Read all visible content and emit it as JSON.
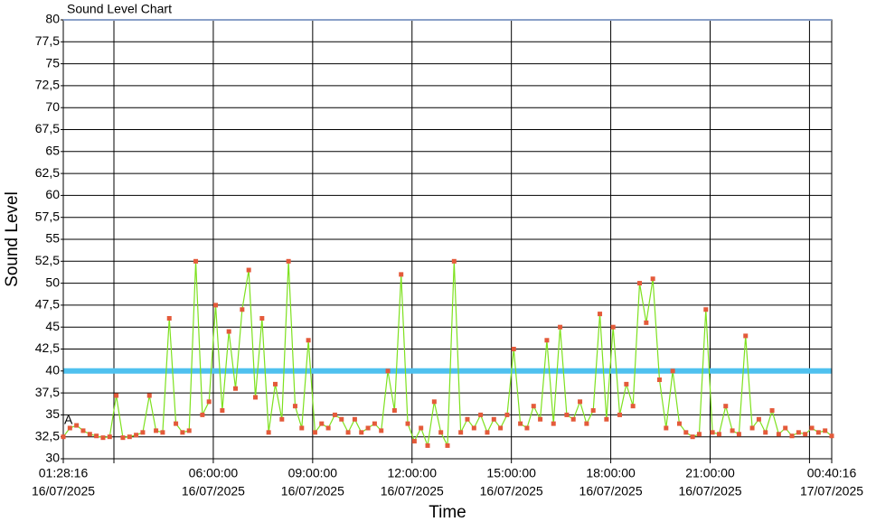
{
  "chart_data": {
    "type": "line",
    "title": "Sound Level Chart",
    "x_label": "Time",
    "y_label": "Sound Level",
    "annotation": "A",
    "threshold": 40,
    "threshold_color": "#4fc1ef",
    "grid": true,
    "ylim": [
      30,
      80
    ],
    "yticks": [
      30,
      {
        "value": 32.5,
        "label": "32,5"
      },
      35,
      {
        "value": 37.5,
        "label": "37,5"
      },
      40,
      {
        "value": 42.5,
        "label": "42,5"
      },
      45,
      {
        "value": 47.5,
        "label": "47,5"
      },
      50,
      {
        "value": 52.5,
        "label": "52,5"
      },
      55,
      {
        "value": 57.5,
        "label": "57,5"
      },
      60,
      {
        "value": 62.5,
        "label": "62,5"
      },
      65,
      {
        "value": 67.5,
        "label": "67,5"
      },
      70,
      {
        "value": 72.5,
        "label": "72,5"
      },
      75,
      {
        "value": 77.5,
        "label": "77,5"
      },
      80
    ],
    "xlim": [
      "2025-07-16 01:28:16",
      "2025-07-17 00:40:16"
    ],
    "xticks": [
      {
        "value": "2025-07-16 01:28:16",
        "label": [
          "01:28:16",
          "16/07/2025"
        ]
      },
      {
        "value": "2025-07-16 03:00:00",
        "label": null
      },
      {
        "value": "2025-07-16 06:00:00",
        "label": [
          "06:00:00",
          "16/07/2025"
        ]
      },
      {
        "value": "2025-07-16 09:00:00",
        "label": [
          "09:00:00",
          "16/07/2025"
        ]
      },
      {
        "value": "2025-07-16 12:00:00",
        "label": [
          "12:00:00",
          "16/07/2025"
        ]
      },
      {
        "value": "2025-07-16 15:00:00",
        "label": [
          "15:00:00",
          "16/07/2025"
        ]
      },
      {
        "value": "2025-07-16 18:00:00",
        "label": [
          "18:00:00",
          "16/07/2025"
        ]
      },
      {
        "value": "2025-07-16 21:00:00",
        "label": [
          "21:00:00",
          "16/07/2025"
        ]
      },
      {
        "value": "2025-07-17 00:00:00",
        "label": null
      },
      {
        "value": "2025-07-17 00:40:16",
        "label": [
          "00:40:16",
          "17/07/2025"
        ]
      }
    ],
    "x": [
      "2025-07-16 01:28:16",
      "2025-07-16 01:40:16",
      "2025-07-16 01:52:16",
      "2025-07-16 02:04:16",
      "2025-07-16 02:16:16",
      "2025-07-16 02:28:16",
      "2025-07-16 02:40:16",
      "2025-07-16 02:52:16",
      "2025-07-16 03:04:16",
      "2025-07-16 03:16:16",
      "2025-07-16 03:28:16",
      "2025-07-16 03:40:16",
      "2025-07-16 03:52:16",
      "2025-07-16 04:04:16",
      "2025-07-16 04:16:16",
      "2025-07-16 04:28:16",
      "2025-07-16 04:40:16",
      "2025-07-16 04:52:16",
      "2025-07-16 05:04:16",
      "2025-07-16 05:16:16",
      "2025-07-16 05:28:16",
      "2025-07-16 05:40:16",
      "2025-07-16 05:52:16",
      "2025-07-16 06:04:16",
      "2025-07-16 06:16:16",
      "2025-07-16 06:28:16",
      "2025-07-16 06:40:16",
      "2025-07-16 06:52:16",
      "2025-07-16 07:04:16",
      "2025-07-16 07:16:16",
      "2025-07-16 07:28:16",
      "2025-07-16 07:40:16",
      "2025-07-16 07:52:16",
      "2025-07-16 08:04:16",
      "2025-07-16 08:16:16",
      "2025-07-16 08:28:16",
      "2025-07-16 08:40:16",
      "2025-07-16 08:52:16",
      "2025-07-16 09:04:16",
      "2025-07-16 09:16:16",
      "2025-07-16 09:28:16",
      "2025-07-16 09:40:16",
      "2025-07-16 09:52:16",
      "2025-07-16 10:04:16",
      "2025-07-16 10:16:16",
      "2025-07-16 10:28:16",
      "2025-07-16 10:40:16",
      "2025-07-16 10:52:16",
      "2025-07-16 11:04:16",
      "2025-07-16 11:16:16",
      "2025-07-16 11:28:16",
      "2025-07-16 11:40:16",
      "2025-07-16 11:52:16",
      "2025-07-16 12:04:16",
      "2025-07-16 12:16:16",
      "2025-07-16 12:28:16",
      "2025-07-16 12:40:16",
      "2025-07-16 12:52:16",
      "2025-07-16 13:04:16",
      "2025-07-16 13:16:16",
      "2025-07-16 13:28:16",
      "2025-07-16 13:40:16",
      "2025-07-16 13:52:16",
      "2025-07-16 14:04:16",
      "2025-07-16 14:16:16",
      "2025-07-16 14:28:16",
      "2025-07-16 14:40:16",
      "2025-07-16 14:52:16",
      "2025-07-16 15:04:16",
      "2025-07-16 15:16:16",
      "2025-07-16 15:28:16",
      "2025-07-16 15:40:16",
      "2025-07-16 15:52:16",
      "2025-07-16 16:04:16",
      "2025-07-16 16:16:16",
      "2025-07-16 16:28:16",
      "2025-07-16 16:40:16",
      "2025-07-16 16:52:16",
      "2025-07-16 17:04:16",
      "2025-07-16 17:16:16",
      "2025-07-16 17:28:16",
      "2025-07-16 17:40:16",
      "2025-07-16 17:52:16",
      "2025-07-16 18:04:16",
      "2025-07-16 18:16:16",
      "2025-07-16 18:28:16",
      "2025-07-16 18:40:16",
      "2025-07-16 18:52:16",
      "2025-07-16 19:04:16",
      "2025-07-16 19:16:16",
      "2025-07-16 19:28:16",
      "2025-07-16 19:40:16",
      "2025-07-16 19:52:16",
      "2025-07-16 20:04:16",
      "2025-07-16 20:16:16",
      "2025-07-16 20:28:16",
      "2025-07-16 20:40:16",
      "2025-07-16 20:52:16",
      "2025-07-16 21:04:16",
      "2025-07-16 21:16:16",
      "2025-07-16 21:28:16",
      "2025-07-16 21:40:16",
      "2025-07-16 21:52:16",
      "2025-07-16 22:04:16",
      "2025-07-16 22:16:16",
      "2025-07-16 22:28:16",
      "2025-07-16 22:40:16",
      "2025-07-16 22:52:16",
      "2025-07-16 23:04:16",
      "2025-07-16 23:16:16",
      "2025-07-16 23:28:16",
      "2025-07-16 23:40:16",
      "2025-07-16 23:52:16",
      "2025-07-17 00:04:16",
      "2025-07-17 00:16:16",
      "2025-07-17 00:28:16",
      "2025-07-17 00:40:16"
    ],
    "series": [
      {
        "color": "#7ee11f",
        "marker_color": "#e45a3a",
        "values": [
          32.5,
          33.5,
          33.8,
          33.2,
          32.8,
          32.6,
          32.4,
          32.5,
          37.2,
          32.4,
          32.5,
          32.7,
          33.0,
          37.2,
          33.2,
          33.0,
          46.0,
          34.0,
          33.0,
          33.2,
          52.5,
          35.0,
          36.5,
          47.5,
          35.5,
          44.5,
          38.0,
          47.0,
          51.5,
          37.0,
          46.0,
          33.0,
          38.5,
          34.5,
          52.5,
          36.0,
          33.5,
          43.5,
          33.0,
          34.0,
          33.5,
          35.0,
          34.5,
          33.0,
          34.5,
          33.0,
          33.5,
          34.0,
          33.2,
          40.0,
          35.5,
          51.0,
          34.0,
          32.0,
          33.5,
          31.5,
          36.5,
          33.0,
          31.5,
          52.5,
          33.0,
          34.5,
          33.5,
          35.0,
          33.0,
          34.5,
          33.5,
          35.0,
          42.5,
          34.0,
          33.5,
          36.0,
          34.5,
          43.5,
          34.0,
          45.0,
          35.0,
          34.5,
          36.5,
          34.0,
          35.5,
          46.5,
          34.5,
          45.0,
          35.0,
          38.5,
          36.0,
          50.0,
          45.5,
          50.5,
          39.0,
          33.5,
          40.0,
          34.0,
          33.0,
          32.5,
          32.8,
          47.0,
          33.0,
          32.8,
          36.0,
          33.2,
          32.8,
          44.0,
          33.5,
          34.5,
          33.0,
          35.5,
          32.8,
          33.5,
          32.6,
          33.0,
          32.8,
          33.5,
          33.0,
          33.2,
          32.6
        ]
      }
    ]
  }
}
